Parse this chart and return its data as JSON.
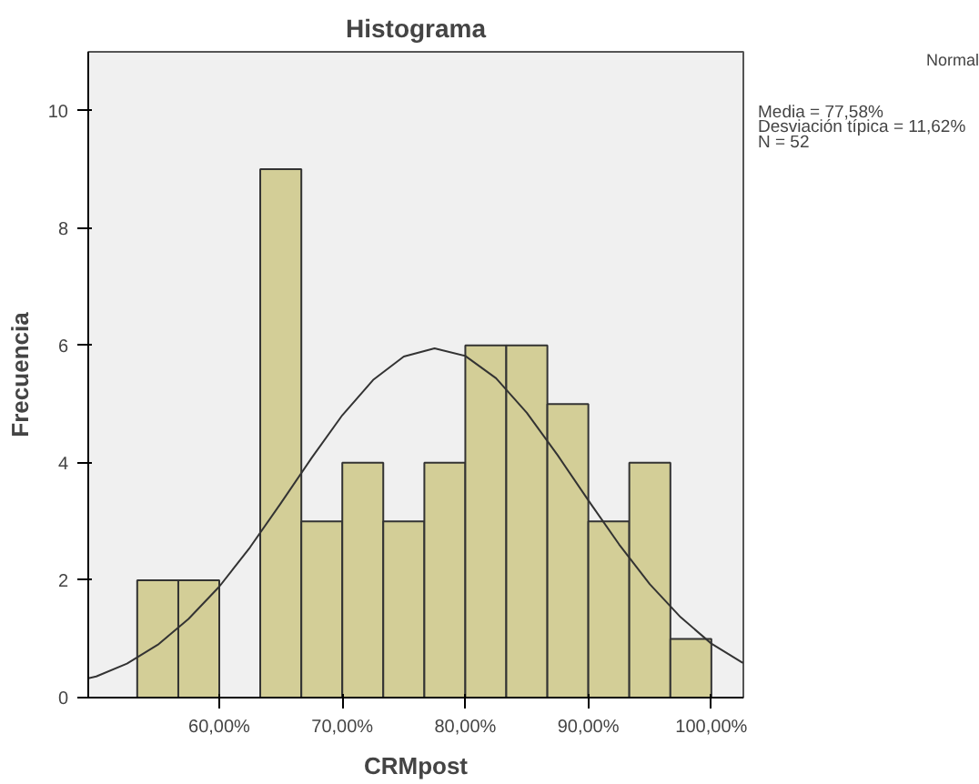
{
  "chart_data": {
    "type": "histogram",
    "title": "Histograma",
    "xlabel": "CRMpost",
    "ylabel": "Frecuencia",
    "bins": [
      53.33,
      56.67,
      60,
      63.33,
      66.67,
      70,
      73.33,
      76.67,
      80,
      83.33,
      86.67,
      90,
      93.33,
      96.67,
      100
    ],
    "values": [
      2,
      2,
      0,
      9,
      3,
      4,
      3,
      4,
      6,
      6,
      5,
      3,
      4,
      1
    ],
    "color": "#d3ce97",
    "series": [
      {
        "type": "line",
        "name": "Normal",
        "color": "#333333",
        "x": [
          49.35,
          50,
          52.5,
          55,
          57.5,
          60,
          62.5,
          65,
          67.5,
          70,
          72.5,
          75,
          77.5,
          80,
          82.5,
          85,
          87.5,
          90,
          92.5,
          95,
          97.5,
          100,
          102.5,
          102.6
        ],
        "values": [
          0.33,
          0.36,
          0.58,
          0.9,
          1.34,
          1.89,
          2.56,
          3.31,
          4.08,
          4.81,
          5.41,
          5.81,
          5.95,
          5.82,
          5.44,
          4.85,
          4.13,
          3.36,
          2.61,
          1.93,
          1.37,
          0.92,
          0.6,
          0.59
        ]
      }
    ],
    "xlim": [
      49.35,
      102.6
    ],
    "ylim": [
      0,
      11
    ],
    "xticks": [
      {
        "value": 60,
        "label": "60,00%"
      },
      {
        "value": 70,
        "label": "70,00%"
      },
      {
        "value": 80,
        "label": "80,00%"
      },
      {
        "value": 90,
        "label": "90,00%"
      },
      {
        "value": 100,
        "label": "100,00%"
      }
    ],
    "yticks": [
      0,
      2,
      4,
      6,
      8,
      10
    ],
    "grid": false,
    "legend": "top right",
    "line_style": "solid",
    "marker": "none",
    "annotations": [
      "Media = 77,58%",
      "Desviación típica = 11,62%",
      "N = 52"
    ]
  }
}
